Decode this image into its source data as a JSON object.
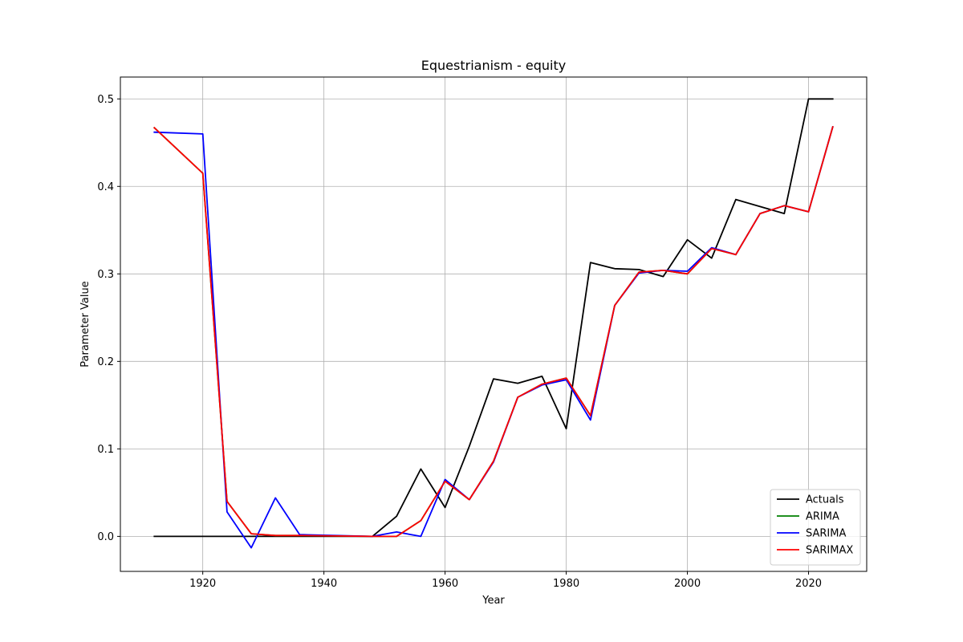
{
  "chart_data": {
    "type": "line",
    "title": "Equestrianism - equity",
    "xlabel": "Year",
    "ylabel": "Parameter Value",
    "xlim": [
      1906.4,
      2029.6
    ],
    "ylim": [
      -0.04,
      0.525
    ],
    "xticks": [
      1920,
      1940,
      1960,
      1980,
      2000,
      2020
    ],
    "yticks": [
      0.0,
      0.1,
      0.2,
      0.3,
      0.4,
      0.5
    ],
    "grid": true,
    "legend_position": "bottom-right",
    "x": [
      1912,
      1920,
      1924,
      1928,
      1932,
      1936,
      1948,
      1952,
      1956,
      1960,
      1964,
      1968,
      1972,
      1976,
      1980,
      1984,
      1988,
      1992,
      1996,
      2000,
      2004,
      2008,
      2012,
      2016,
      2020,
      2024
    ],
    "series": [
      {
        "name": "Actuals",
        "color": "#000000",
        "values": [
          0.0,
          0.0,
          0.0,
          0.0,
          0.0,
          0.0,
          0.0,
          0.023,
          0.077,
          0.033,
          0.103,
          0.18,
          0.175,
          0.183,
          0.123,
          0.313,
          0.306,
          0.305,
          0.297,
          0.339,
          0.318,
          0.385,
          0.377,
          0.369,
          0.5,
          0.5
        ]
      },
      {
        "name": "ARIMA",
        "color": "#008000",
        "values": [
          0.467,
          0.415,
          0.04,
          0.003,
          0.001,
          0.001,
          0.0,
          0.0,
          0.018,
          0.063,
          0.042,
          0.086,
          0.159,
          0.174,
          0.181,
          0.138,
          0.264,
          0.302,
          0.304,
          0.3,
          0.329,
          0.322,
          0.369,
          0.378,
          0.371,
          0.468
        ]
      },
      {
        "name": "SARIMA",
        "color": "#0000ff",
        "values": [
          0.462,
          0.46,
          0.028,
          -0.013,
          0.044,
          0.002,
          0.0,
          0.005,
          0.0,
          0.065,
          0.042,
          0.085,
          0.159,
          0.173,
          0.179,
          0.133,
          0.264,
          0.301,
          0.304,
          0.303,
          0.33,
          0.322,
          0.369,
          0.378,
          0.371,
          0.468
        ]
      },
      {
        "name": "SARIMAX",
        "color": "#ff0000",
        "values": [
          0.467,
          0.415,
          0.04,
          0.003,
          0.001,
          0.001,
          0.0,
          0.0,
          0.018,
          0.063,
          0.042,
          0.086,
          0.159,
          0.174,
          0.181,
          0.138,
          0.264,
          0.302,
          0.304,
          0.3,
          0.329,
          0.322,
          0.369,
          0.378,
          0.371,
          0.468
        ]
      }
    ]
  }
}
